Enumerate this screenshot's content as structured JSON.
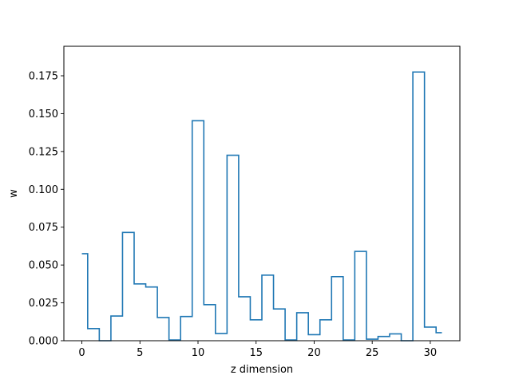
{
  "chart_data": {
    "type": "line",
    "style": "step",
    "title": "",
    "xlabel": "z dimension",
    "ylabel": "w",
    "xlim": [
      -1.55,
      32.55
    ],
    "ylim": [
      0,
      0.1945
    ],
    "xticks": [
      0,
      5,
      10,
      15,
      20,
      25,
      30
    ],
    "yticks": [
      "0.000",
      "0.025",
      "0.050",
      "0.075",
      "0.100",
      "0.125",
      "0.150",
      "0.175"
    ],
    "grid": false,
    "legend": "none",
    "series": [
      {
        "color": "#1f77b4",
        "x": [
          0,
          1,
          2,
          3,
          4,
          5,
          6,
          7,
          8,
          9,
          10,
          11,
          12,
          13,
          14,
          15,
          16,
          17,
          18,
          19,
          20,
          21,
          22,
          23,
          24,
          25,
          26,
          27,
          28,
          29,
          30,
          31
        ],
        "values": [
          0.0575,
          0.008,
          0.0,
          0.0163,
          0.0715,
          0.0375,
          0.0355,
          0.0153,
          0.0005,
          0.016,
          0.1453,
          0.0238,
          0.0048,
          0.1225,
          0.029,
          0.0138,
          0.0433,
          0.021,
          0.0005,
          0.0185,
          0.004,
          0.0138,
          0.0423,
          0.0005,
          0.059,
          0.001,
          0.0028,
          0.0045,
          0.0,
          0.1775,
          0.009,
          0.0053
        ]
      }
    ]
  }
}
